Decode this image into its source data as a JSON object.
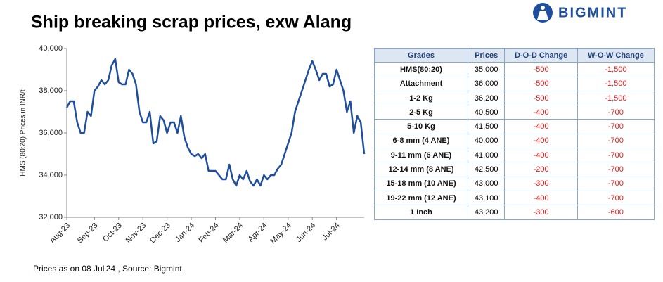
{
  "header": {
    "logo": "BIGMINT"
  },
  "chart_data": {
    "type": "line",
    "title": "Ship breaking scrap prices, exw Alang",
    "ylabel": "HMS (80:20) Prices in INR/t",
    "note": "Prices as on 08 Jul'24 , Source: Bigmint",
    "x": [
      "Aug-23",
      "Aug-23",
      "Aug-23",
      "Aug-23",
      "Aug-23",
      "Aug-23",
      "Aug-23",
      "Aug-23",
      "Sep-23",
      "Sep-23",
      "Sep-23",
      "Sep-23",
      "Sep-23",
      "Sep-23",
      "Sep-23",
      "Oct-23",
      "Oct-23",
      "Oct-23",
      "Oct-23",
      "Oct-23",
      "Oct-23",
      "Oct-23",
      "Nov-23",
      "Nov-23",
      "Nov-23",
      "Nov-23",
      "Nov-23",
      "Nov-23",
      "Nov-23",
      "Dec-23",
      "Dec-23",
      "Dec-23",
      "Dec-23",
      "Dec-23",
      "Dec-23",
      "Dec-23",
      "Jan-24",
      "Jan-24",
      "Jan-24",
      "Jan-24",
      "Jan-24",
      "Jan-24",
      "Jan-24",
      "Feb-24",
      "Feb-24",
      "Feb-24",
      "Feb-24",
      "Feb-24",
      "Feb-24",
      "Feb-24",
      "Mar-24",
      "Mar-24",
      "Mar-24",
      "Mar-24",
      "Mar-24",
      "Mar-24",
      "Mar-24",
      "Apr-24",
      "Apr-24",
      "Apr-24",
      "Apr-24",
      "Apr-24",
      "Apr-24",
      "Apr-24",
      "May-24",
      "May-24",
      "May-24",
      "May-24",
      "May-24",
      "May-24",
      "May-24",
      "Jun-24",
      "Jun-24",
      "Jun-24",
      "Jun-24",
      "Jun-24",
      "Jun-24",
      "Jun-24",
      "Jul-24",
      "Jul-24",
      "Jul-24",
      "Jul-24",
      "Jul-24",
      "Jul-24",
      "Jul-24",
      "Jul-24",
      "Jul-24"
    ],
    "series": [
      {
        "name": "HMS (80:20)",
        "color": "#1f4e9c",
        "values": [
          37200,
          37500,
          37500,
          36500,
          36000,
          36000,
          37000,
          36800,
          38000,
          38200,
          38500,
          38300,
          38500,
          39200,
          39500,
          38400,
          38300,
          38300,
          39000,
          38800,
          38300,
          37000,
          36500,
          36500,
          37000,
          35500,
          35600,
          36800,
          36600,
          36000,
          36500,
          36500,
          36000,
          36800,
          35800,
          35300,
          35000,
          34900,
          35000,
          34800,
          35000,
          34200,
          34200,
          34200,
          34000,
          33800,
          33800,
          34500,
          33800,
          33500,
          34000,
          33800,
          34200,
          33700,
          33500,
          33800,
          33500,
          34000,
          33800,
          34000,
          34000,
          34300,
          34500,
          35000,
          35500,
          36000,
          37000,
          37500,
          38000,
          38500,
          39000,
          39400,
          39000,
          38500,
          38800,
          38800,
          38200,
          38300,
          39000,
          38500,
          38000,
          37000,
          37500,
          36000,
          36800,
          36500,
          35000
        ]
      }
    ],
    "ylim": [
      32000,
      40000
    ],
    "yticks": [
      {
        "value": 32000,
        "label": "32,000"
      },
      {
        "value": 34000,
        "label": "34,000"
      },
      {
        "value": 36000,
        "label": "36,000"
      },
      {
        "value": 38000,
        "label": "38,000"
      },
      {
        "value": 40000,
        "label": "40,000"
      }
    ],
    "grid": false
  },
  "table": {
    "header": [
      "Grades",
      "Prices",
      "D-O-D Change",
      "W-O-W Change"
    ],
    "rows": [
      [
        "HMS(80:20)",
        "35,000",
        "-500",
        "-1,500"
      ],
      [
        "Attachment",
        "36,000",
        "-500",
        "-1,500"
      ],
      [
        "1-2 Kg",
        "36,200",
        "-500",
        "-1,500"
      ],
      [
        "2-5 Kg",
        "40,500",
        "-400",
        "-700"
      ],
      [
        "5-10 Kg",
        "41,500",
        "-400",
        "-700"
      ],
      [
        "6-8 mm (4 ANE)",
        "40,000",
        "-400",
        "-700"
      ],
      [
        "9-11 mm (6 ANE)",
        "41,000",
        "-400",
        "-700"
      ],
      [
        "12-14 mm (8 ANE)",
        "42,500",
        "-200",
        "-700"
      ],
      [
        "15-18 mm (10 ANE)",
        "43,000",
        "-300",
        "-700"
      ],
      [
        "19-22 mm (12 ANE)",
        "43,100",
        "-400",
        "-700"
      ],
      [
        "1 Inch",
        "43,200",
        "-300",
        "-600"
      ]
    ]
  }
}
